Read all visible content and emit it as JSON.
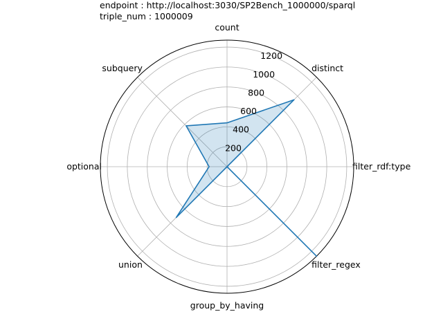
{
  "header": {
    "endpoint_line": "endpoint : http://localhost:3030/SP2Bench_1000000/sparql",
    "triple_line": "triple_num : 1000009"
  },
  "chart_data": {
    "type": "radar",
    "categories": [
      "count",
      "distinct",
      "filter_rdf:type",
      "filter_regex",
      "group_by_having",
      "union",
      "optional",
      "subquery"
    ],
    "series": [
      {
        "values": [
          440,
          950,
          0,
          1270,
          0,
          720,
          180,
          580
        ]
      }
    ],
    "rlim": [
      0,
      1270
    ],
    "r_ticks": [
      200,
      400,
      600,
      800,
      1000,
      1200
    ],
    "grid": true,
    "colors": {
      "line": "#1f77b4",
      "fill": "#1f77b4",
      "fill_opacity": 0.2,
      "grid": "#b0b0b0"
    }
  }
}
